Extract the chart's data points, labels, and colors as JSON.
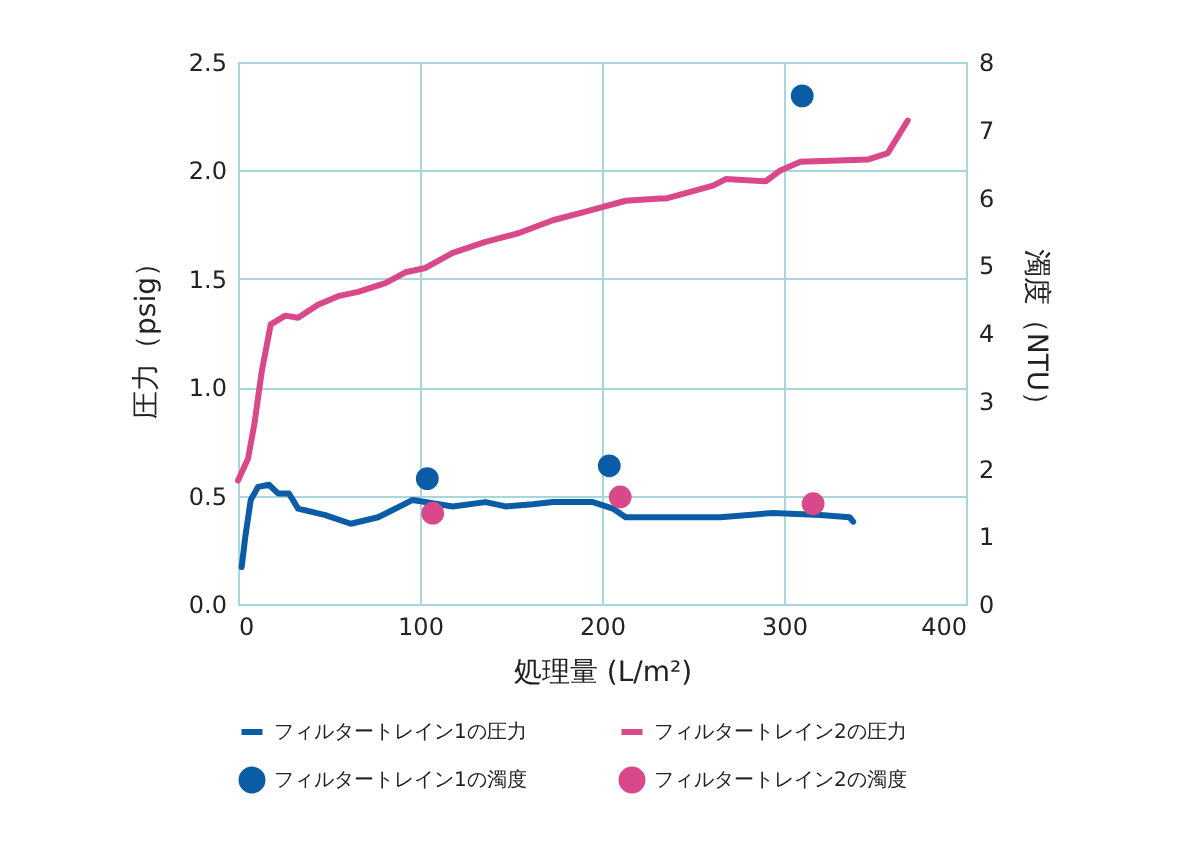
{
  "chart_data": {
    "type": "line",
    "xlabel": "処理量 (L/m²)",
    "ylabel": "圧力（psig）",
    "y2label": "濁度（NTU）",
    "xlim": [
      0,
      400
    ],
    "xticks": [
      0,
      100,
      200,
      300,
      400
    ],
    "ylim": [
      0,
      2.5
    ],
    "yticks": [
      {
        "value": 0,
        "label": "0.0"
      },
      {
        "value": 0.5,
        "label": "0.5"
      },
      {
        "value": 1,
        "label": "1.0"
      },
      {
        "value": 1.5,
        "label": "1.5"
      },
      {
        "value": 2,
        "label": "2.0"
      },
      {
        "value": 2.5,
        "label": "2.5"
      }
    ],
    "y2lim": [
      0,
      8
    ],
    "y2ticks": [
      0,
      1,
      2,
      3,
      4,
      5,
      6,
      7,
      8
    ],
    "grid": true,
    "legend": "bottom",
    "series": [
      {
        "name": "フィルタートレイン1の圧力",
        "color": "#0b5ca6",
        "x": [
          2,
          4,
          7,
          11,
          17,
          22,
          28,
          33,
          48,
          62,
          77,
          96,
          118,
          136,
          147,
          162,
          173,
          195,
          206,
          213,
          228,
          265,
          294,
          320,
          336,
          338
        ],
        "values": [
          0.17,
          0.31,
          0.48,
          0.54,
          0.55,
          0.51,
          0.51,
          0.44,
          0.41,
          0.37,
          0.4,
          0.48,
          0.45,
          0.47,
          0.45,
          0.46,
          0.47,
          0.47,
          0.44,
          0.4,
          0.4,
          0.4,
          0.42,
          0.41,
          0.4,
          0.38
        ]
      },
      {
        "name": "フィルタートレイン2の圧力",
        "color": "#d9488b",
        "x": [
          0,
          5.5,
          9,
          13,
          18,
          26,
          33,
          44,
          55,
          66,
          81,
          92,
          103,
          118,
          136,
          154,
          173,
          191,
          213,
          232,
          235,
          261,
          268,
          290,
          298,
          309,
          346,
          357,
          368
        ],
        "values": [
          0.57,
          0.67,
          0.83,
          1.07,
          1.29,
          1.33,
          1.32,
          1.38,
          1.42,
          1.44,
          1.48,
          1.53,
          1.55,
          1.62,
          1.67,
          1.71,
          1.77,
          1.81,
          1.86,
          1.87,
          1.87,
          1.93,
          1.96,
          1.95,
          2.0,
          2.04,
          2.05,
          2.08,
          2.23
        ]
      },
      {
        "name": "フィルタートレイン1の濁度",
        "type": "scatter",
        "axis": "y2",
        "color": "#0b5ca6",
        "x": [
          104,
          204,
          310
        ],
        "values": [
          1.85,
          2.04,
          7.5
        ]
      },
      {
        "name": "フィルタートレイン2の濁度",
        "type": "scatter",
        "axis": "y2",
        "color": "#d9488b",
        "x": [
          107,
          210,
          316
        ],
        "values": [
          1.34,
          1.58,
          1.48
        ]
      }
    ]
  }
}
